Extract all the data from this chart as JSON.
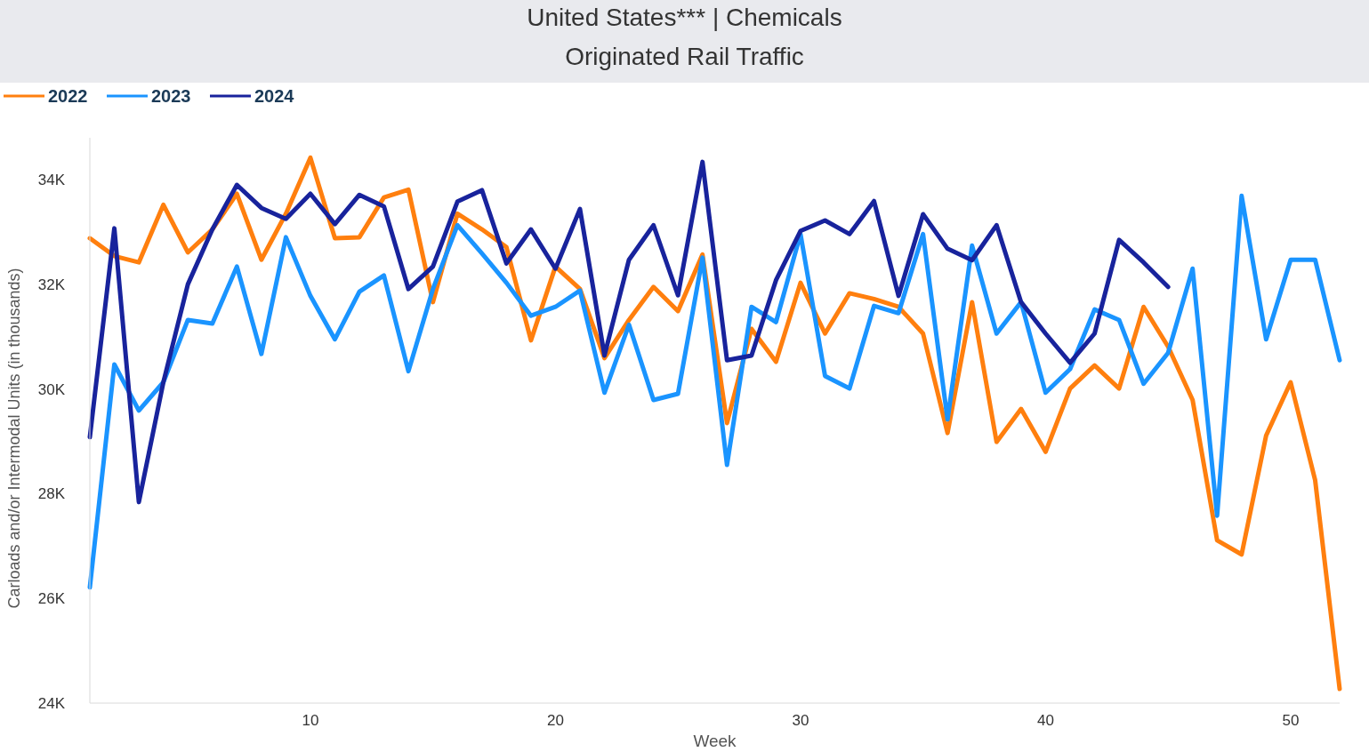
{
  "chart_data": {
    "type": "line",
    "title": "United States*** | Chemicals",
    "subtitle": "Originated Rail Traffic",
    "xlabel": "Week",
    "ylabel": "Carloads and/or Intermodal Units (in thousands)",
    "x": [
      1,
      2,
      3,
      4,
      5,
      6,
      7,
      8,
      9,
      10,
      11,
      12,
      13,
      14,
      15,
      16,
      17,
      18,
      19,
      20,
      21,
      22,
      23,
      24,
      25,
      26,
      27,
      28,
      29,
      30,
      31,
      32,
      33,
      34,
      35,
      36,
      37,
      38,
      39,
      40,
      41,
      42,
      43,
      44,
      45,
      46,
      47,
      48,
      49,
      50,
      51,
      52
    ],
    "xlim": [
      1,
      52
    ],
    "xticks": [
      10,
      20,
      30,
      40,
      50
    ],
    "ylim": [
      24000,
      34800
    ],
    "yticks": [
      {
        "value": 24000,
        "label": "24K"
      },
      {
        "value": 26000,
        "label": "26K"
      },
      {
        "value": 28000,
        "label": "28K"
      },
      {
        "value": 30000,
        "label": "30K"
      },
      {
        "value": 32000,
        "label": "32K"
      },
      {
        "value": 34000,
        "label": "34K"
      }
    ],
    "grid": false,
    "legend": "top left",
    "marker": "none",
    "line_style": "solid",
    "series": [
      {
        "name": "2022",
        "color": "#ff7f0e",
        "values": [
          32880,
          32540,
          32420,
          33520,
          32610,
          33050,
          33730,
          32470,
          33350,
          34420,
          32880,
          32900,
          33660,
          33810,
          31660,
          33350,
          33050,
          32710,
          30930,
          32340,
          31910,
          30590,
          31320,
          31950,
          31490,
          32570,
          29350,
          31150,
          30520,
          32030,
          31060,
          31830,
          31720,
          31570,
          31060,
          29160,
          31660,
          28990,
          29620,
          28800,
          30010,
          30450,
          30010,
          31570,
          30810,
          29790,
          27110,
          26840,
          29110,
          30130,
          28260,
          24270
        ]
      },
      {
        "name": "2023",
        "color": "#1a94ff",
        "values": [
          26210,
          30470,
          29590,
          30130,
          31320,
          31250,
          32340,
          30670,
          32900,
          31780,
          30950,
          31860,
          32170,
          30340,
          31910,
          33130,
          32590,
          32030,
          31400,
          31570,
          31880,
          29930,
          31230,
          29790,
          29910,
          32510,
          28550,
          31570,
          31280,
          32960,
          30250,
          30010,
          31590,
          31450,
          32960,
          29420,
          32740,
          31060,
          31660,
          29930,
          30380,
          31520,
          31320,
          30100,
          30690,
          32300,
          27580,
          33690,
          30950,
          32470,
          32470,
          30550
        ]
      },
      {
        "name": "2024",
        "color": "#18239c",
        "values": [
          29080,
          33070,
          27840,
          30130,
          32000,
          33050,
          33900,
          33460,
          33250,
          33730,
          33150,
          33710,
          33490,
          31910,
          32340,
          33580,
          33800,
          32400,
          33050,
          32300,
          33440,
          30640,
          32470,
          33130,
          31790,
          34340,
          30550,
          30640,
          32080,
          33020,
          33220,
          32960,
          33590,
          31780,
          33340,
          32680,
          32460,
          33130,
          31660,
          31060,
          30500,
          31060,
          32850,
          32420,
          31950,
          null,
          null,
          null,
          null,
          null,
          null,
          null
        ]
      }
    ]
  }
}
